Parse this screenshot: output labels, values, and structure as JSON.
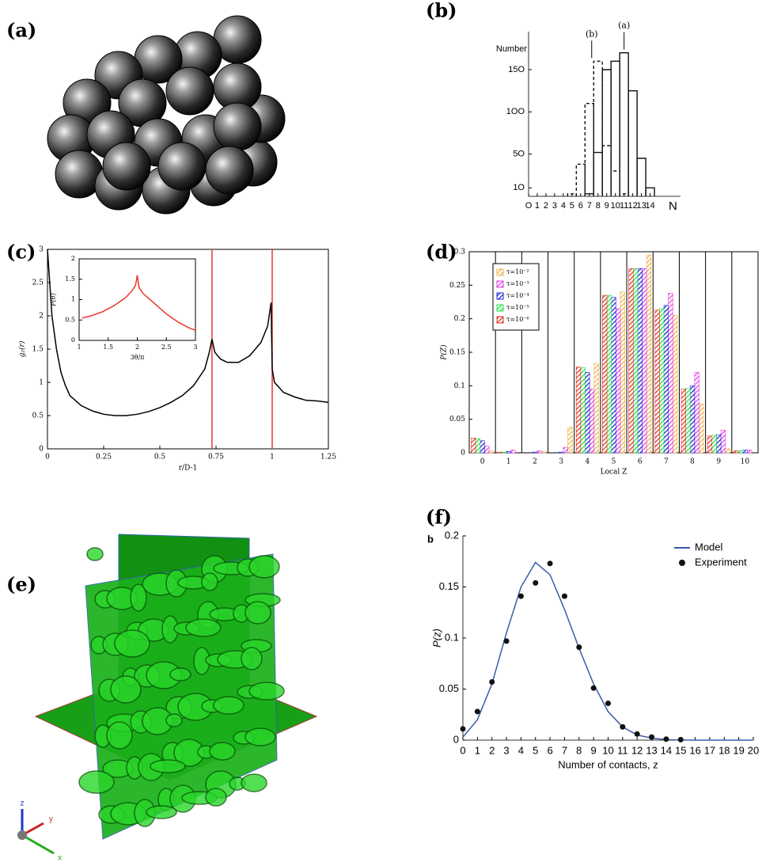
{
  "panel_labels": [
    "(a)",
    "(b)",
    "(c)",
    "(d)",
    "(e)",
    "(f)"
  ],
  "axis_icon": [
    "z",
    "y",
    "x"
  ],
  "chart_data": [
    {
      "type": "step",
      "ylabel": "Number",
      "xlabel": "N",
      "x": [
        5,
        6,
        7,
        8,
        9,
        10,
        11,
        12,
        13,
        14
      ],
      "series": [
        {
          "name": "(a)",
          "color": "#111111",
          "dash": false,
          "values": [
            null,
            null,
            3,
            52,
            150,
            160,
            170,
            125,
            45,
            10
          ]
        },
        {
          "name": "(b)",
          "color": "#111111",
          "dash": true,
          "values": [
            3,
            38,
            110,
            160,
            60,
            30,
            3,
            null,
            null,
            null
          ]
        }
      ],
      "xlim": [
        0,
        17.5
      ],
      "ylim": [
        0,
        195
      ],
      "xticks": [
        {
          "value": 0,
          "label": "O"
        },
        1,
        2,
        3,
        4,
        5,
        6,
        7,
        8,
        9,
        10,
        11,
        12,
        13,
        14
      ],
      "yticks": [
        {
          "value": 10,
          "label": "1O"
        },
        {
          "value": 50,
          "label": "5O"
        },
        {
          "value": 100,
          "label": "1OO"
        },
        {
          "value": 150,
          "label": "15O"
        }
      ]
    },
    {
      "type": "line",
      "ylabel": "g₂(r)",
      "xlabel": "r/D-1",
      "x": [
        0,
        0.01,
        0.02,
        0.04,
        0.06,
        0.08,
        0.1,
        0.15,
        0.2,
        0.25,
        0.3,
        0.35,
        0.4,
        0.45,
        0.5,
        0.55,
        0.6,
        0.65,
        0.7,
        0.72,
        0.732,
        0.745,
        0.77,
        0.8,
        0.85,
        0.9,
        0.95,
        0.98,
        0.995,
        1.0,
        1.01,
        1.05,
        1.1,
        1.15,
        1.2,
        1.25
      ],
      "series": [
        {
          "color": "#000000",
          "mark": "line",
          "values": [
            3.0,
            2.5,
            2.0,
            1.5,
            1.15,
            0.95,
            0.8,
            0.65,
            0.57,
            0.52,
            0.5,
            0.5,
            0.52,
            0.56,
            0.62,
            0.7,
            0.8,
            0.95,
            1.2,
            1.45,
            1.65,
            1.45,
            1.35,
            1.3,
            1.3,
            1.4,
            1.6,
            1.85,
            2.2,
            1.2,
            1.0,
            0.85,
            0.78,
            0.73,
            0.72,
            0.7
          ]
        }
      ],
      "vlines": [
        0.732,
        1
      ],
      "vline_color": "#e8392b",
      "xlim": [
        0,
        1.25
      ],
      "ylim": [
        0,
        3
      ],
      "xticks": [
        0,
        0.25,
        0.5,
        0.75,
        1,
        1.25
      ],
      "yticks": [
        0,
        0.5,
        1,
        1.5,
        2,
        2.5,
        3
      ]
    },
    {
      "type": "line",
      "ylabel": "P(θ)",
      "xlabel": "3θ/π",
      "x": [
        1.05,
        1.2,
        1.4,
        1.6,
        1.8,
        1.9,
        1.97,
        2.0,
        2.03,
        2.1,
        2.3,
        2.5,
        2.7,
        2.9,
        3.0
      ],
      "series": [
        {
          "color": "#e8392b",
          "mark": "line",
          "values": [
            0.55,
            0.6,
            0.7,
            0.85,
            1.05,
            1.2,
            1.35,
            1.6,
            1.3,
            1.15,
            0.9,
            0.65,
            0.45,
            0.3,
            0.25
          ]
        }
      ],
      "xlim": [
        1,
        3
      ],
      "ylim": [
        0,
        2
      ],
      "xticks": [
        1,
        1.5,
        2,
        2.5,
        3
      ],
      "yticks": [
        0,
        0.5,
        1,
        1.5,
        2
      ]
    },
    {
      "type": "grouped_bar",
      "ylabel": "P(Z)",
      "xlabel": "Local Z",
      "categories": [
        "0",
        "1",
        "2",
        "3",
        "4",
        "5",
        "6",
        "7",
        "8",
        "9",
        "10"
      ],
      "series": [
        {
          "name": "τ=10⁻²",
          "color": "#f0b040",
          "values": [
            0.003,
            0.0,
            0.002,
            0.038,
            0.133,
            0.24,
            0.295,
            0.205,
            0.073,
            0.006,
            0.0
          ]
        },
        {
          "name": "τ=10⁻³",
          "color": "#e040e0",
          "values": [
            0.01,
            0.004,
            0.003,
            0.008,
            0.095,
            0.215,
            0.275,
            0.238,
            0.12,
            0.034,
            0.004
          ]
        },
        {
          "name": "τ=10⁻⁴",
          "color": "#2020e0",
          "values": [
            0.018,
            0.002,
            0.001,
            0.001,
            0.12,
            0.232,
            0.275,
            0.22,
            0.1,
            0.027,
            0.004
          ]
        },
        {
          "name": "τ=10⁻⁵",
          "color": "#20e040",
          "values": [
            0.021,
            0.001,
            0.0,
            0.0,
            0.127,
            0.235,
            0.275,
            0.215,
            0.096,
            0.026,
            0.003
          ]
        },
        {
          "name": "τ=10⁻⁶",
          "color": "#e03020",
          "values": [
            0.022,
            0.001,
            0.0,
            0.0,
            0.128,
            0.235,
            0.275,
            0.213,
            0.095,
            0.025,
            0.003
          ]
        }
      ],
      "ylim": [
        0,
        0.3
      ],
      "yticks": [
        0,
        0.05,
        0.1,
        0.15,
        0.2,
        0.25,
        0.3
      ]
    },
    {
      "type": "line",
      "tag": "b",
      "ylabel": "P(z)",
      "xlabel": "Number of contacts, z",
      "x": [
        0,
        1,
        2,
        3,
        4,
        5,
        6,
        7,
        8,
        9,
        10,
        11,
        12,
        13,
        14,
        15,
        16,
        17,
        18,
        19,
        20
      ],
      "series": [
        {
          "name": "Model",
          "color": "#3a5aa8",
          "mark": "line",
          "values": [
            0.003,
            0.02,
            0.055,
            0.105,
            0.15,
            0.174,
            0.162,
            0.128,
            0.09,
            0.055,
            0.028,
            0.013,
            0.005,
            0.002,
            0.0005,
            0.0001,
            0,
            0,
            0,
            0,
            0
          ]
        },
        {
          "name": "Experiment",
          "color": "#111111",
          "mark": "scatter",
          "values": [
            0.011,
            0.028,
            0.057,
            0.097,
            0.141,
            0.154,
            0.173,
            0.141,
            0.091,
            0.051,
            0.036,
            0.013,
            0.006,
            0.003,
            0.001,
            0.0005,
            null,
            null,
            null,
            null,
            null
          ]
        }
      ],
      "xlim": [
        0,
        20
      ],
      "ylim": [
        0,
        0.2
      ],
      "xticks": [
        0,
        1,
        2,
        3,
        4,
        5,
        6,
        7,
        8,
        9,
        10,
        11,
        12,
        13,
        14,
        15,
        16,
        17,
        18,
        19,
        20
      ],
      "yticks": [
        0,
        0.05,
        0.1,
        0.15,
        0.2
      ]
    }
  ]
}
